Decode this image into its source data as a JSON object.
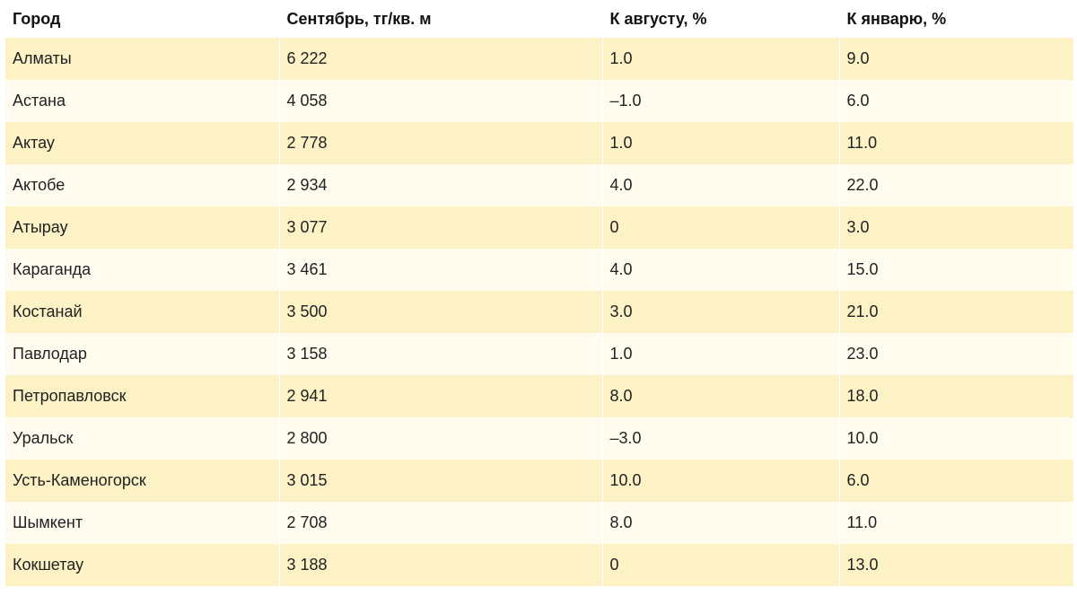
{
  "table": {
    "headers": [
      "Город",
      "Сентябрь, тг/кв. м",
      "К августу, %",
      "К январю, %"
    ],
    "rows": [
      [
        "Алматы",
        "6 222",
        "1.0",
        "9.0"
      ],
      [
        "Астана",
        "4 058",
        "–1.0",
        "6.0"
      ],
      [
        "Актау",
        "2 778",
        "1.0",
        "11.0"
      ],
      [
        "Актобе",
        "2 934",
        "4.0",
        "22.0"
      ],
      [
        "Атырау",
        "3 077",
        "0",
        "3.0"
      ],
      [
        "Караганда",
        "3 461",
        "4.0",
        "15.0"
      ],
      [
        "Костанай",
        "3 500",
        "3.0",
        "21.0"
      ],
      [
        "Павлодар",
        "3 158",
        "1.0",
        "23.0"
      ],
      [
        "Петропавловск",
        "2 941",
        "8.0",
        "18.0"
      ],
      [
        "Уральск",
        "2 800",
        "–3.0",
        "10.0"
      ],
      [
        "Усть-Каменогорск",
        "3 015",
        "10.0",
        "6.0"
      ],
      [
        "Шымкент",
        "2 708",
        "8.0",
        "11.0"
      ],
      [
        "Кокшетау",
        "3 188",
        "0",
        "13.0"
      ]
    ]
  },
  "colors": {
    "row_odd": "#fdf1c6",
    "row_even": "#fffbef",
    "text": "#222222"
  }
}
